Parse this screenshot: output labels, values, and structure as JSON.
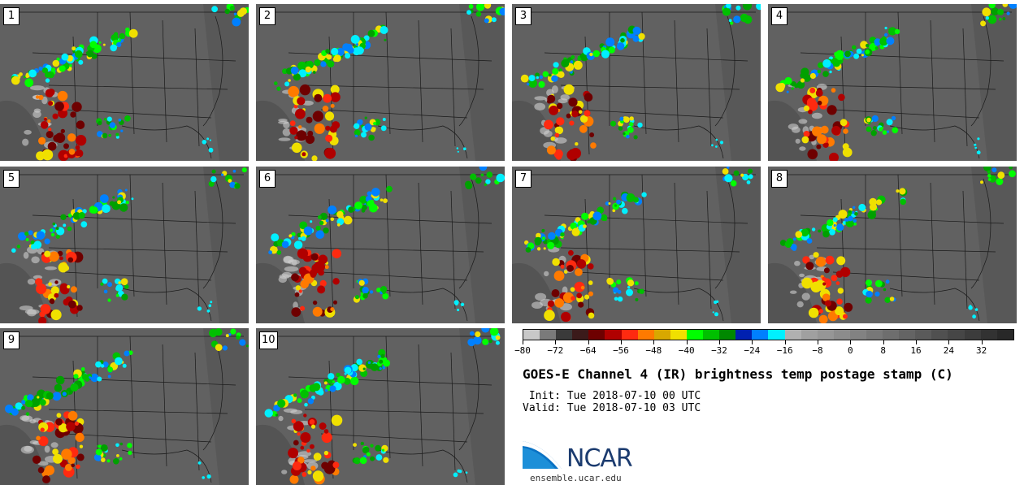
{
  "panels": [
    {
      "label": "1"
    },
    {
      "label": "2"
    },
    {
      "label": "3"
    },
    {
      "label": "4"
    },
    {
      "label": "5"
    },
    {
      "label": "6"
    },
    {
      "label": "7"
    },
    {
      "label": "8"
    },
    {
      "label": "9"
    },
    {
      "label": "10"
    }
  ],
  "colorbar": {
    "colors": [
      "#c8c8c8",
      "#7a7a7a",
      "#3a3a3a",
      "#3b1a1a",
      "#6e0000",
      "#b00000",
      "#ff2a10",
      "#ff7a00",
      "#d8a800",
      "#f0e000",
      "#00ff00",
      "#00c000",
      "#008800",
      "#0020b0",
      "#0080ff",
      "#00f0ff",
      "#b0b0b0",
      "#a0a0a0",
      "#969696",
      "#8c8c8c",
      "#828282",
      "#787878",
      "#6e6e6e",
      "#646464",
      "#5a5a5a",
      "#505050",
      "#464646",
      "#3c3c3c",
      "#323232",
      "#282828"
    ],
    "ticks": [
      "−80",
      "−72",
      "−64",
      "−56",
      "−48",
      "−40",
      "−32",
      "−24",
      "−16",
      "−8",
      "0",
      "8",
      "16",
      "24",
      "32"
    ]
  },
  "title": "GOES-E Channel 4 (IR) brightness temp postage stamp (C)",
  "init_text": " Init: Tue 2018-07-10 00 UTC",
  "valid_text": "Valid: Tue 2018-07-10 03 UTC",
  "logo": {
    "text": "NCAR",
    "site": "ensemble.ucar.edu"
  }
}
